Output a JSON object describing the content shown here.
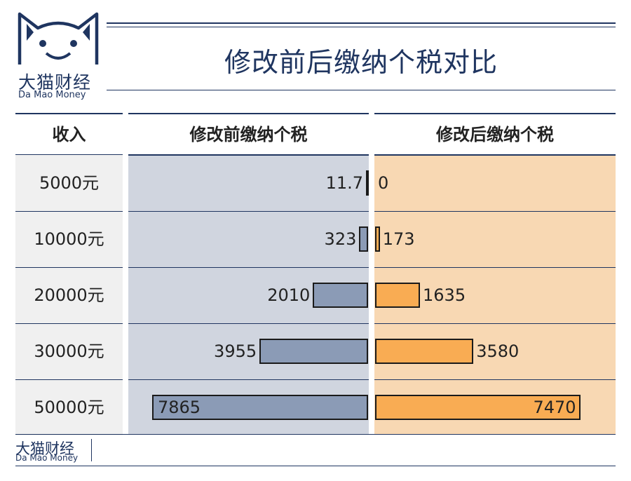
{
  "brand": {
    "name_cn": "大猫财经",
    "name_en": "Da  Mao Money"
  },
  "title": "修改前后缴纳个税对比",
  "colors": {
    "navy": "#1f3560",
    "before_bar": "#8b9bb6",
    "after_bar": "#f9ac53",
    "before_bg": "#cfd4de",
    "after_bg": "#f8d7b2"
  },
  "chart_data": {
    "type": "bar",
    "layout": "back-to-back horizontal",
    "headers": {
      "income": "收入",
      "before": "修改前缴纳个税",
      "after": "修改后缴纳个税"
    },
    "categories": [
      "5000元",
      "10000元",
      "20000元",
      "30000元",
      "50000元"
    ],
    "series": [
      {
        "name": "修改前缴纳个税",
        "labels": [
          "11.7",
          "323",
          "2010",
          "3955",
          "7865"
        ],
        "values": [
          11.7,
          323,
          2010,
          3955,
          7865
        ]
      },
      {
        "name": "修改后缴纳个税",
        "labels": [
          "0",
          "173",
          "1635",
          "3580",
          "7470"
        ],
        "values": [
          0,
          173,
          1635,
          3580,
          7470
        ]
      }
    ],
    "max": 7865
  },
  "footer": {
    "name_cn": "大猫财经",
    "name_en": "Da  Mao Money"
  }
}
